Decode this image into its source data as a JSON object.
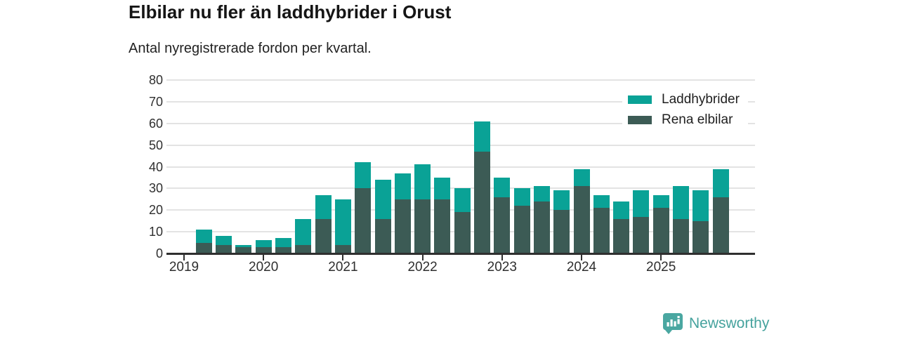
{
  "header": {
    "title": "Elbilar nu fler än laddhybrider i Orust",
    "subtitle": "Antal nyregistrerade fordon per kvartal."
  },
  "legend": [
    {
      "label": "Laddhybrider",
      "color": "#0aa296"
    },
    {
      "label": "Rena elbilar",
      "color": "#3c5b55"
    }
  ],
  "branding": {
    "name": "Newsworthy",
    "color": "#45a29d"
  },
  "colors": {
    "laddhybrider": "#0aa296",
    "rena_elbilar": "#3c5b55",
    "grid": "#e3e3e3",
    "axis": "#2f2f2f",
    "title": "#151515"
  },
  "chart_data": {
    "type": "bar",
    "stacked": true,
    "title": "Elbilar nu fler än laddhybrider i Orust",
    "subtitle": "Antal nyregistrerade fordon per kvartal.",
    "xlabel": "",
    "ylabel": "",
    "ylim": [
      0,
      80
    ],
    "ytick_step": 10,
    "y_tick_labels": [
      "0",
      "10",
      "20",
      "30",
      "40",
      "50",
      "60",
      "70",
      "80"
    ],
    "x_tick_labels": [
      "2019",
      "2020",
      "2021",
      "2022",
      "2023",
      "2024",
      "2025"
    ],
    "grid": true,
    "legend_position": "top-right",
    "categories": [
      "2019 Q1",
      "2019 Q2",
      "2019 Q3",
      "2019 Q4",
      "2020 Q1",
      "2020 Q2",
      "2020 Q3",
      "2020 Q4",
      "2021 Q1",
      "2021 Q2",
      "2021 Q3",
      "2021 Q4",
      "2022 Q1",
      "2022 Q2",
      "2022 Q3",
      "2022 Q4",
      "2023 Q1",
      "2023 Q2",
      "2023 Q3",
      "2023 Q4",
      "2024 Q1",
      "2024 Q2",
      "2024 Q3",
      "2024 Q4",
      "2025 Q1",
      "2025 Q2",
      "2025 Q3",
      "2025 Q4"
    ],
    "series": [
      {
        "name": "Rena elbilar",
        "color": "#3c5b55",
        "values": [
          0,
          5,
          4,
          3,
          3,
          3,
          4,
          16,
          4,
          30,
          16,
          25,
          25,
          25,
          19,
          47,
          26,
          22,
          24,
          20,
          31,
          21,
          16,
          17,
          21,
          16,
          15,
          26
        ]
      },
      {
        "name": "Laddhybrider",
        "color": "#0aa296",
        "values": [
          0,
          6,
          4,
          1,
          3,
          4,
          12,
          11,
          21,
          12,
          18,
          12,
          16,
          10,
          11,
          14,
          9,
          8,
          7,
          9,
          8,
          6,
          8,
          12,
          6,
          15,
          14,
          13
        ]
      }
    ],
    "totals": [
      0,
      11,
      8,
      4,
      6,
      7,
      16,
      27,
      25,
      42,
      34,
      37,
      41,
      35,
      30,
      61,
      35,
      30,
      31,
      29,
      39,
      27,
      24,
      29,
      27,
      31,
      29,
      39
    ]
  }
}
